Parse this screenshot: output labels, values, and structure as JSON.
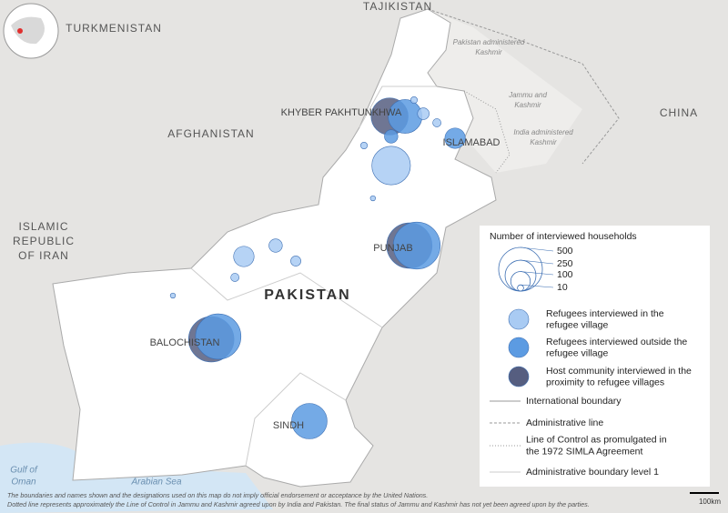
{
  "map": {
    "countries": [
      "TAJIKISTAN",
      "TURKMENISTAN",
      "AFGHANISTAN",
      "CHINA",
      [
        "ISLAMIC",
        "REPUBLIC",
        "OF IRAN"
      ]
    ],
    "main_country": "PAKISTAN",
    "regions": [
      "KHYBER PAKHTUNKHWA",
      "ISLAMABAD",
      "PUNJAB",
      "BALOCHISTAN",
      "SINDH"
    ],
    "areas": [
      [
        "Pakistan administered",
        "Kashmir"
      ],
      [
        "Jammu and",
        "Kashmir"
      ],
      [
        "India administered",
        "Kashmir"
      ]
    ],
    "seas": [
      [
        "Gulf of",
        "Oman"
      ],
      [
        "Arabian Sea"
      ]
    ]
  },
  "legend": {
    "title": "Number of interviewed households",
    "scale": [
      500,
      250,
      100,
      10
    ],
    "groups": [
      {
        "name": [
          "Refugees interviewed in the",
          "refugee village"
        ],
        "color": "#a9cbf3"
      },
      {
        "name": [
          "Refugees interviewed outside the",
          "refugee village"
        ],
        "color": "#5c9be2"
      },
      {
        "name": [
          "Host community interviewed in the",
          "proximity to refugee villages"
        ],
        "color": "#565e80"
      }
    ],
    "lines": [
      [
        "International boundary"
      ],
      [
        "Administrative line"
      ],
      [
        "Line of Control as promulgated in",
        "the 1972 SIMLA Agreement"
      ],
      [
        "Administrative boundary level 1"
      ]
    ]
  },
  "bubbles": [
    {
      "group": 2,
      "lon": 71.41,
      "lat": 34.14,
      "households": 360
    },
    {
      "group": 2,
      "lon": 66.81,
      "lat": 29.24,
      "households": 540
    },
    {
      "group": 2,
      "lon": 71.92,
      "lat": 31.3,
      "households": 540
    },
    {
      "group": 1,
      "lon": 71.81,
      "lat": 34.14,
      "households": 300
    },
    {
      "group": 1,
      "lon": 73.1,
      "lat": 33.66,
      "households": 110
    },
    {
      "group": 1,
      "lon": 66.99,
      "lat": 29.3,
      "households": 540
    },
    {
      "group": 1,
      "lon": 72.11,
      "lat": 31.3,
      "households": 580
    },
    {
      "group": 1,
      "lon": 69.34,
      "lat": 27.44,
      "households": 330
    },
    {
      "group": 1,
      "lon": 71.45,
      "lat": 33.7,
      "households": 47
    },
    {
      "group": 0,
      "lon": 71.45,
      "lat": 33.06,
      "households": 390
    },
    {
      "group": 0,
      "lon": 67.65,
      "lat": 31.06,
      "households": 110
    },
    {
      "group": 0,
      "lon": 68.47,
      "lat": 31.3,
      "households": 47
    },
    {
      "group": 0,
      "lon": 68.99,
      "lat": 30.96,
      "households": 27
    },
    {
      "group": 0,
      "lon": 72.28,
      "lat": 34.2,
      "households": 36
    },
    {
      "group": 0,
      "lon": 72.63,
      "lat": 34.0,
      "households": 18
    },
    {
      "group": 0,
      "lon": 72.04,
      "lat": 34.5,
      "households": 12
    },
    {
      "group": 0,
      "lon": 70.75,
      "lat": 33.5,
      "households": 12
    },
    {
      "group": 0,
      "lon": 70.98,
      "lat": 32.34,
      "households": 7
    },
    {
      "group": 0,
      "lon": 65.82,
      "lat": 30.2,
      "households": 7
    },
    {
      "group": 0,
      "lon": 67.42,
      "lat": 30.6,
      "households": 18
    }
  ],
  "scale_bar": "100km",
  "disclaimer": [
    "The boundaries and names shown and the designations used on this map do not imply official endorsement or acceptance by the United Nations.",
    "Dotted line represents approximately the Line of Control in Jammu and Kashmir agreed upon by India and Pakistan. The final status of Jammu and Kashmir has not yet been agreed upon by the parties."
  ]
}
